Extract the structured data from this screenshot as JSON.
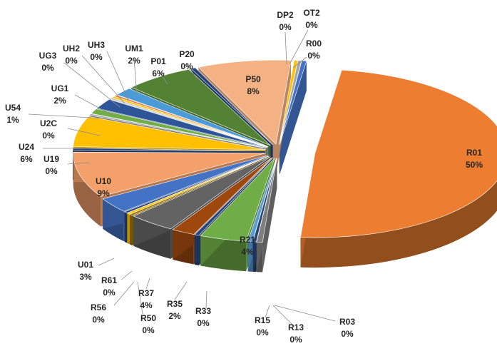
{
  "chart_data": {
    "type": "pie",
    "title": "",
    "legend": "none",
    "style": "3d-exploded",
    "slices": [
      {
        "name": "R01",
        "pct_label": "50%",
        "value": 50,
        "color": "#ED7D31"
      },
      {
        "name": "R03",
        "pct_label": "0%",
        "value": 0.5,
        "color": "#7F7F7F"
      },
      {
        "name": "R13",
        "pct_label": "0%",
        "value": 0.3,
        "color": "#264478"
      },
      {
        "name": "R15",
        "pct_label": "0%",
        "value": 0.4,
        "color": "#5B9BD5"
      },
      {
        "name": "R21",
        "pct_label": "4%",
        "value": 4,
        "color": "#70AD47"
      },
      {
        "name": "R33",
        "pct_label": "0%",
        "value": 0.4,
        "color": "#264478"
      },
      {
        "name": "R35",
        "pct_label": "2%",
        "value": 2,
        "color": "#9E480E"
      },
      {
        "name": "R37",
        "pct_label": "4%",
        "value": 4,
        "color": "#636363"
      },
      {
        "name": "R50",
        "pct_label": "0%",
        "value": 0.3,
        "color": "#997300"
      },
      {
        "name": "R56",
        "pct_label": "0%",
        "value": 0.3,
        "color": "#FFC000"
      },
      {
        "name": "R61",
        "pct_label": "0%",
        "value": 0.3,
        "color": "#264478"
      },
      {
        "name": "U01",
        "pct_label": "3%",
        "value": 3,
        "color": "#4472C4"
      },
      {
        "name": "U10",
        "pct_label": "9%",
        "value": 9,
        "color": "#F4A06B"
      },
      {
        "name": "U19",
        "pct_label": "0%",
        "value": 0.4,
        "color": "#264478"
      },
      {
        "name": "U24",
        "pct_label": "6%",
        "value": 6,
        "color": "#FFC000"
      },
      {
        "name": "U2C",
        "pct_label": "0%",
        "value": 0.3,
        "color": "#A5A5A5"
      },
      {
        "name": "U54",
        "pct_label": "1%",
        "value": 1,
        "color": "#70AD47"
      },
      {
        "name": "UG1",
        "pct_label": "2%",
        "value": 2,
        "color": "#2E5597"
      },
      {
        "name": "UG3",
        "pct_label": "0%",
        "value": 0.3,
        "color": "#C9C9C9"
      },
      {
        "name": "UH2",
        "pct_label": "0%",
        "value": 0.3,
        "color": "#FFC000"
      },
      {
        "name": "UH3",
        "pct_label": "0%",
        "value": 0.3,
        "color": "#ED7D31"
      },
      {
        "name": "UM1",
        "pct_label": "2%",
        "value": 1.6,
        "color": "#4A9BD8"
      },
      {
        "name": "P01",
        "pct_label": "6%",
        "value": 6,
        "color": "#548235"
      },
      {
        "name": "P20",
        "pct_label": "0%",
        "value": 0.4,
        "color": "#264478"
      },
      {
        "name": "P50",
        "pct_label": "8%",
        "value": 8,
        "color": "#F4B183"
      },
      {
        "name": "DP2",
        "pct_label": "0%",
        "value": 0.3,
        "color": "#FFC000"
      },
      {
        "name": "OT2",
        "pct_label": "0%",
        "value": 0.3,
        "color": "#A5A5A5"
      },
      {
        "name": "R00",
        "pct_label": "0%",
        "value": 0.4,
        "color": "#4472C4"
      }
    ]
  }
}
